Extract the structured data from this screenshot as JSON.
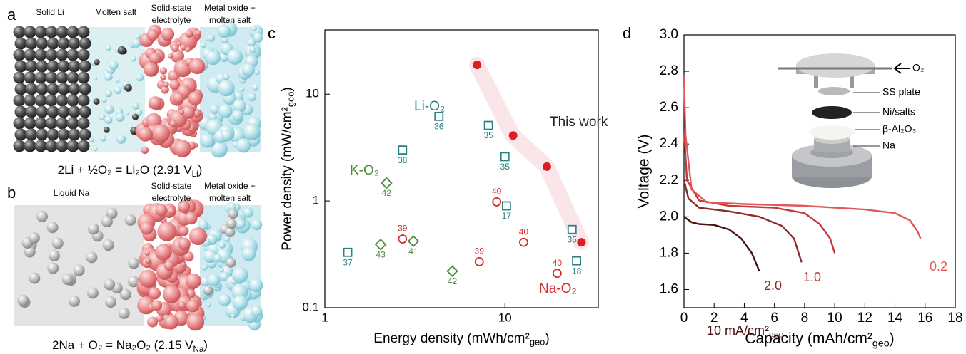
{
  "panel_labels": [
    "a",
    "b",
    "c",
    "d"
  ],
  "diagram_a": {
    "regions": [
      {
        "lines": [
          "Solid Li"
        ]
      },
      {
        "lines": [
          "Molten salt"
        ]
      },
      {
        "lines": [
          "Solid-state",
          "electrolyte"
        ]
      },
      {
        "lines": [
          "Metal oxide +",
          "molten salt"
        ]
      }
    ],
    "equation": [
      {
        "text": "2Li + ½O₂ = Li₂O (2.91 V"
      },
      {
        "text": "Li",
        "sub": true
      },
      {
        "text": ")"
      }
    ]
  },
  "diagram_b": {
    "regions": [
      {
        "lines": [
          "Liquid Na"
        ]
      },
      {
        "lines": [
          "Solid-state",
          "electrolyte"
        ]
      },
      {
        "lines": [
          "Metal oxide +",
          "molten salt"
        ]
      }
    ],
    "equation": [
      {
        "text": "2Na + O₂ = Na₂O₂ (2.15 V"
      },
      {
        "text": "Na",
        "sub": true
      },
      {
        "text": ")"
      }
    ]
  },
  "chart_data": [
    {
      "type": "scatter",
      "xscale": "log",
      "yscale": "log",
      "xlim": [
        1,
        33
      ],
      "ylim": [
        0.1,
        40
      ],
      "xticks": [
        1,
        10
      ],
      "yticks": [
        0.1,
        1,
        10
      ],
      "xlabel": [
        {
          "text": "Energy density (mWh/cm²"
        },
        {
          "text": "geo",
          "sub": true
        },
        {
          "text": ")"
        }
      ],
      "ylabel": [
        {
          "text": "Power density (mW/cm²"
        },
        {
          "text": "geo",
          "sub": true
        },
        {
          "text": ")"
        }
      ],
      "series": [
        {
          "name": "Li-O₂",
          "color": "#2a8282",
          "marker": "square",
          "x": [
            1.34,
            2.7,
            4.3,
            8.1,
            10,
            10.2,
            23.6,
            25
          ],
          "values": [
            0.33,
            3.0,
            6.2,
            5.1,
            2.6,
            0.9,
            0.54,
            0.275
          ],
          "point_labels": [
            "37",
            "38",
            "36",
            "35",
            "35",
            "17",
            "35",
            "18"
          ]
        },
        {
          "name": "K-O₂",
          "color": "#4a8a3a",
          "marker": "diamond",
          "x": [
            2.2,
            2.04,
            3.1,
            5.1
          ],
          "values": [
            1.47,
            0.39,
            0.42,
            0.22
          ],
          "point_labels": [
            "42",
            "43",
            "41",
            "42"
          ]
        },
        {
          "name": "Na-O₂",
          "color": "#d03030",
          "marker": "circle",
          "x": [
            2.7,
            7.2,
            9.0,
            12.7,
            19.5
          ],
          "values": [
            0.44,
            0.27,
            0.98,
            0.41,
            0.21
          ],
          "point_labels": [
            "39",
            "39",
            "40",
            "40",
            "40"
          ]
        },
        {
          "name": "This work",
          "color": "#dd1c24",
          "marker": "filled-circle",
          "x": [
            7.0,
            11.1,
            17.1,
            26.6
          ],
          "values": [
            18.8,
            4.1,
            2.1,
            0.41
          ]
        }
      ]
    },
    {
      "type": "line",
      "xlim": [
        0,
        18
      ],
      "ylim": [
        1.5,
        3.0
      ],
      "xticks": [
        0,
        2,
        4,
        6,
        8,
        10,
        12,
        14,
        16,
        18
      ],
      "yticks": [
        1.6,
        1.8,
        {
          "value": 2,
          "label": "2.0"
        },
        2.2,
        2.4,
        2.6,
        2.8,
        {
          "value": 3,
          "label": "3.0"
        }
      ],
      "xlabel": [
        {
          "text": "Capacity (mAh/cm²"
        },
        {
          "text": "geo",
          "sub": true
        },
        {
          "text": ")"
        }
      ],
      "ylabel": "Voltage (V)",
      "series": [
        {
          "name": [
            {
              "text": "10 mA/cm²"
            },
            {
              "text": "geo",
              "sub": true
            }
          ],
          "color": "#4a1212",
          "x": [
            0,
            0.5,
            1,
            2,
            3,
            3.8,
            4.5,
            5
          ],
          "values": [
            2.0,
            1.97,
            1.96,
            1.955,
            1.93,
            1.88,
            1.8,
            1.7
          ]
        },
        {
          "name": "2.0",
          "color": "#8e2a2a",
          "x": [
            0,
            0.3,
            1,
            3,
            5,
            6.5,
            7.3,
            7.8
          ],
          "values": [
            2.2,
            2.1,
            2.05,
            2.03,
            2.0,
            1.95,
            1.88,
            1.75
          ]
        },
        {
          "name": "1.0",
          "color": "#c0393b",
          "x": [
            0,
            0.2,
            1,
            3,
            6,
            8,
            9,
            9.7,
            10
          ],
          "values": [
            2.48,
            2.2,
            2.09,
            2.06,
            2.05,
            2.02,
            1.96,
            1.88,
            1.8
          ]
        },
        {
          "name": "0.2",
          "color": "#e05858",
          "x": [
            0,
            0.1,
            0.5,
            1.5,
            4,
            8,
            12,
            14,
            15,
            15.5,
            15.7
          ],
          "values": [
            2.78,
            2.45,
            2.15,
            2.08,
            2.07,
            2.06,
            2.04,
            2.02,
            1.98,
            1.92,
            1.88
          ]
        }
      ],
      "inset": {
        "labels": [
          "O₂",
          "SS plate",
          "Ni/salts",
          "β-Al₂O₃",
          "Na"
        ]
      }
    }
  ]
}
